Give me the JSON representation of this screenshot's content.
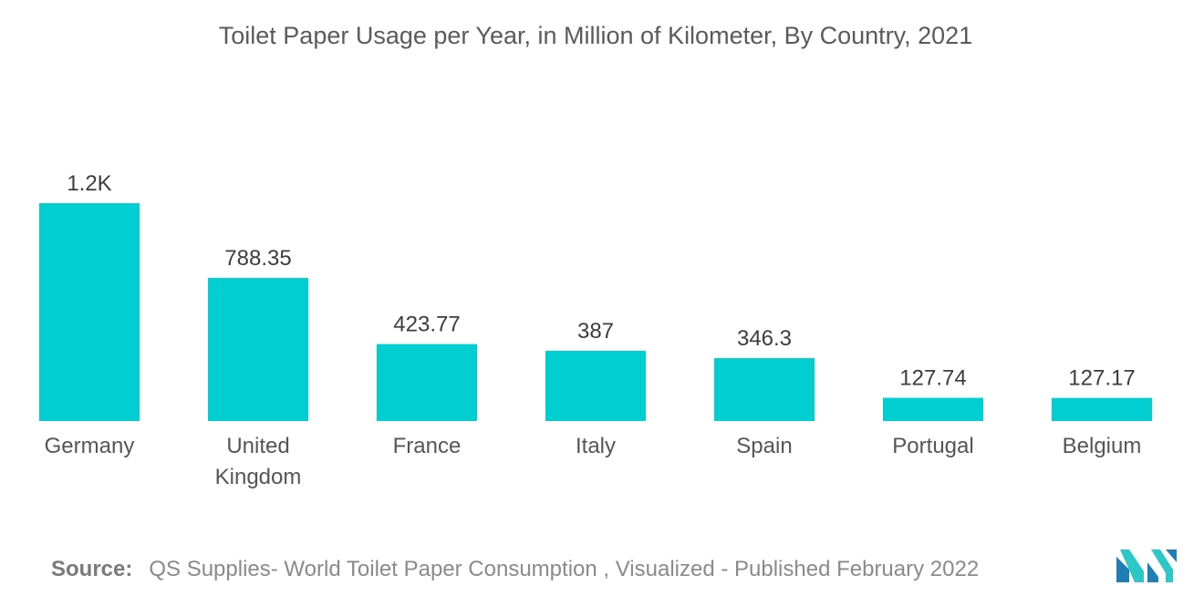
{
  "chart_data": {
    "type": "bar",
    "title": "Toilet Paper Usage per Year, in Million of Kilometer, By Country, 2021",
    "categories": [
      "Germany",
      "United Kingdom",
      "France",
      "Italy",
      "Spain",
      "Portugal",
      "Belgium"
    ],
    "category_lines": [
      [
        "Germany"
      ],
      [
        "United",
        "Kingdom"
      ],
      [
        "France"
      ],
      [
        "Italy"
      ],
      [
        "Spain"
      ],
      [
        "Portugal"
      ],
      [
        "Belgium"
      ]
    ],
    "values": [
      1200,
      788.35,
      423.77,
      387,
      346.3,
      127.74,
      127.17
    ],
    "data_labels": [
      "1.2K",
      "788.35",
      "423.77",
      "387",
      "346.3",
      "127.74",
      "127.17"
    ],
    "ylim": [
      0,
      1200
    ],
    "bar_color": "#00ced1",
    "grid": false,
    "legend": "none"
  },
  "source": {
    "label": "Source:",
    "text": "QS Supplies- World Toilet Paper Consumption , Visualized - Published February 2022"
  },
  "logo": {
    "icon": "mordor-intelligence-logo-icon",
    "colors": [
      "#1f7fb5",
      "#2cc7c7"
    ]
  }
}
